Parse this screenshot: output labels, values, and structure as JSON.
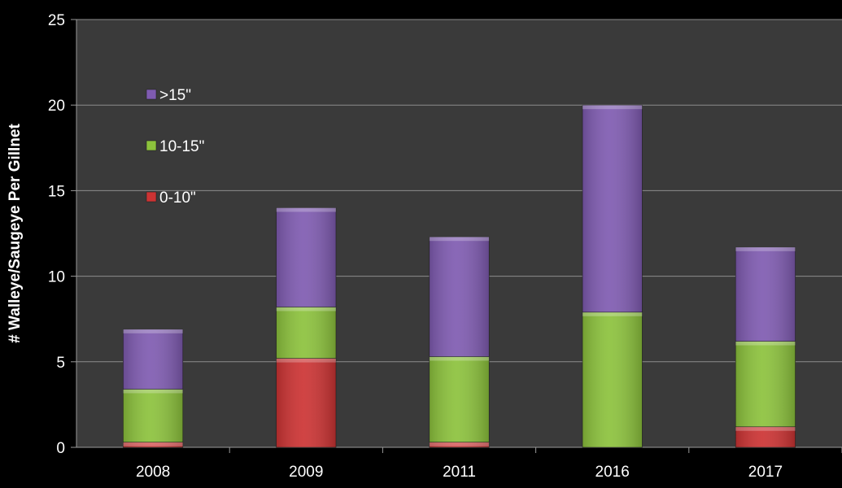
{
  "chart_data": {
    "type": "bar",
    "stacked": true,
    "categories": [
      "2008",
      "2009",
      "2011",
      "2016",
      "2017"
    ],
    "series": [
      {
        "name": "0-10\"",
        "values": [
          0.3,
          5.2,
          0.3,
          0,
          1.2
        ],
        "color": "#cc3333"
      },
      {
        "name": "10-15\"",
        "values": [
          3.1,
          3.0,
          5.0,
          7.9,
          5.0
        ],
        "color": "#8cc23c"
      },
      {
        "name": ">15\"",
        "values": [
          3.5,
          5.8,
          7.0,
          12.1,
          5.5
        ],
        "color": "#7f5bb1"
      }
    ],
    "legend_order": [
      ">15\"",
      "10-15\"",
      "0-10\""
    ],
    "legend_position": "top-left",
    "title": "",
    "xlabel": "",
    "ylabel": "# Walleye/Saugeye Per Gillnet",
    "ylim": [
      0,
      25
    ],
    "yticks": [
      0,
      5,
      10,
      15,
      20,
      25
    ],
    "grid": true,
    "plot_background": "#3a3a3a",
    "page_background": "#000000"
  }
}
